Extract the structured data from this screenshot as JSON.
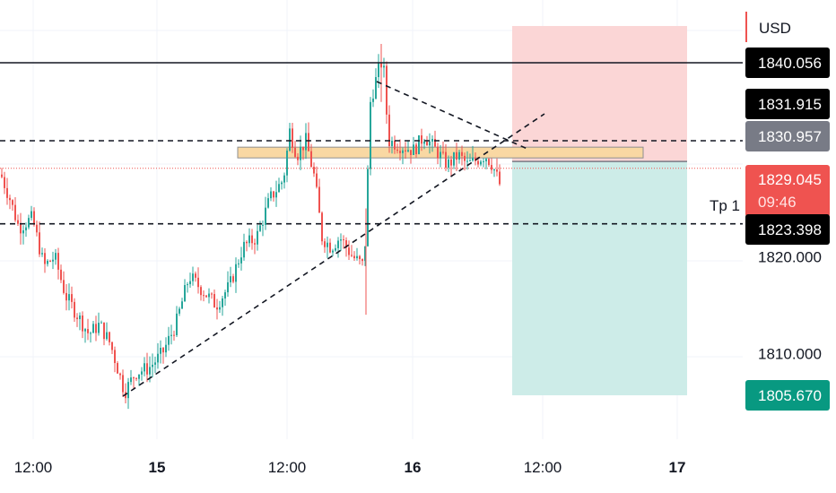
{
  "currency_label": "USD",
  "tp_label": "Tp 1",
  "colors": {
    "up": "#26a69a",
    "down": "#ef5350",
    "stop_zone": "#fbd6d6",
    "target_zone": "#cdece8",
    "entry_box": "#f9d8a3",
    "last_price": "#ef5350",
    "black_tag": "#000000",
    "gray_tag": "#787b86",
    "green_tag": "#089981"
  },
  "chart_data": {
    "type": "candlestick",
    "y_range": [
      1800,
      1843
    ],
    "x_ticks": [
      {
        "label": "12:00",
        "bold": false
      },
      {
        "label": "15",
        "bold": true
      },
      {
        "label": "12:00",
        "bold": false
      },
      {
        "label": "16",
        "bold": true
      },
      {
        "label": "12:00",
        "bold": false
      },
      {
        "label": "17",
        "bold": true
      }
    ],
    "y_ticks": [
      1810.0,
      1820.0
    ],
    "price_tags": [
      {
        "name": "resistance-level",
        "value": 1840.056,
        "label": "1840.056",
        "style": "black"
      },
      {
        "name": "upper-level",
        "value": 1831.915,
        "label": "1831.915",
        "style": "black"
      },
      {
        "name": "entry-level",
        "value": 1830.957,
        "label": "1830.957",
        "style": "gray"
      },
      {
        "name": "last-price",
        "value": 1829.045,
        "label": "1829.045",
        "countdown": "09:46",
        "style": "red"
      },
      {
        "name": "tp1-level",
        "value": 1823.398,
        "label": "1823.398",
        "style": "black"
      },
      {
        "name": "target-level",
        "value": 1805.67,
        "label": "1805.670",
        "style": "green"
      }
    ],
    "candle_path": [
      [
        0,
        1828.5
      ],
      [
        10,
        1826
      ],
      [
        20,
        1823
      ],
      [
        35,
        1824
      ],
      [
        48,
        1819
      ],
      [
        60,
        1820
      ],
      [
        72,
        1816
      ],
      [
        85,
        1814
      ],
      [
        98,
        1812
      ],
      [
        110,
        1813
      ],
      [
        122,
        1811
      ],
      [
        138,
        1806
      ],
      [
        150,
        1808
      ],
      [
        165,
        1808.5
      ],
      [
        180,
        1810
      ],
      [
        195,
        1813
      ],
      [
        210,
        1818
      ],
      [
        225,
        1816.5
      ],
      [
        240,
        1815
      ],
      [
        255,
        1817
      ],
      [
        270,
        1821
      ],
      [
        285,
        1822
      ],
      [
        300,
        1826
      ],
      [
        315,
        1828
      ],
      [
        322,
        1833
      ],
      [
        330,
        1830.5
      ],
      [
        340,
        1832
      ],
      [
        350,
        1828
      ],
      [
        358,
        1822
      ],
      [
        368,
        1821
      ],
      [
        378,
        1822
      ],
      [
        392,
        1820
      ],
      [
        405,
        1819
      ],
      [
        412,
        1836
      ],
      [
        420,
        1839
      ],
      [
        426,
        1840.5
      ],
      [
        432,
        1832
      ],
      [
        445,
        1831.5
      ],
      [
        460,
        1831
      ],
      [
        472,
        1832.5
      ],
      [
        485,
        1831
      ],
      [
        498,
        1829.5
      ],
      [
        510,
        1830.5
      ],
      [
        520,
        1829.5
      ],
      [
        530,
        1830
      ],
      [
        540,
        1830.5
      ],
      [
        548,
        1829.5
      ],
      [
        556,
        1827.5
      ]
    ]
  }
}
